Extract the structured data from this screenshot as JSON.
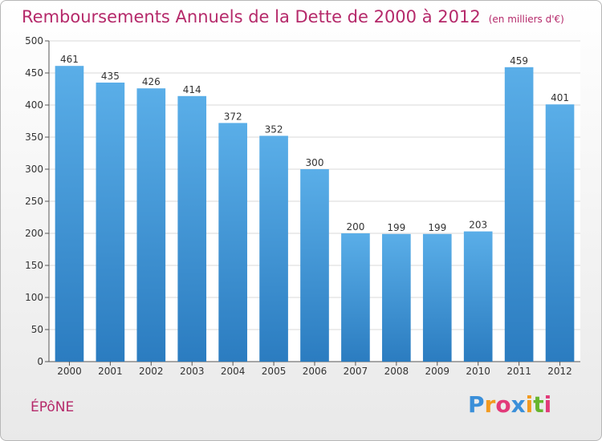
{
  "chart_data": {
    "type": "bar",
    "title": "Remboursements Annuels de la Dette de 2000 à 2012",
    "unit_note": "(en milliers d'€)",
    "categories": [
      "2000",
      "2001",
      "2002",
      "2003",
      "2004",
      "2005",
      "2006",
      "2007",
      "2008",
      "2009",
      "2010",
      "2011",
      "2012"
    ],
    "values": [
      461,
      435,
      426,
      414,
      372,
      352,
      300,
      200,
      199,
      199,
      203,
      459,
      401
    ],
    "ylim": [
      0,
      500
    ],
    "yticks": [
      0,
      50,
      100,
      150,
      200,
      250,
      300,
      350,
      400,
      450,
      500
    ],
    "grid": true,
    "bar_color_top": "#5aaee8",
    "bar_color_bottom": "#2b7cc0"
  },
  "town": "ÉPôNE",
  "logo": {
    "letters": [
      "P",
      "r",
      "o",
      "x",
      "i",
      "t",
      "i"
    ],
    "colors": [
      "#3a8fd9",
      "#f29a1f",
      "#e23a7a",
      "#3a8fd9",
      "#f29a1f",
      "#67b52e",
      "#e23a7a"
    ]
  },
  "colors": {
    "title": "#b5296a"
  }
}
